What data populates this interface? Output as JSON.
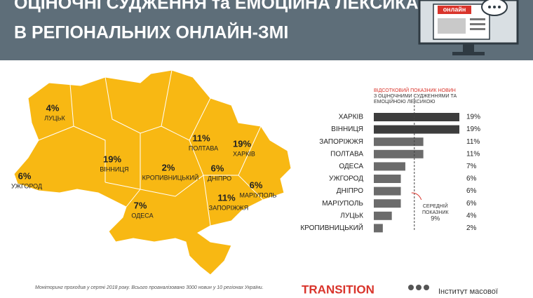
{
  "header": {
    "title_line1": "ОЦІНОЧНІ СУДЖЕННЯ та ЕМОЦІЙНА ЛЕКСИКА",
    "title_line2": "В РЕГІОНАЛЬНИХ ОНЛАЙН-ЗМІ",
    "icon_label": "онлайн"
  },
  "map": {
    "labels": [
      {
        "percent": "4%",
        "city": "ЛУЦЬК"
      },
      {
        "percent": "6%",
        "city": "УЖГОРОД"
      },
      {
        "percent": "19%",
        "city": "ВІННИЦЯ"
      },
      {
        "percent": "2%",
        "city": "КРОПИВНИЦЬКИЙ"
      },
      {
        "percent": "11%",
        "city": "ПОЛТАВА"
      },
      {
        "percent": "19%",
        "city": "ХАРКІВ"
      },
      {
        "percent": "6%",
        "city": "ДНІПРО"
      },
      {
        "percent": "6%",
        "city": "МАРІУПОЛЬ"
      },
      {
        "percent": "11%",
        "city": "ЗАПОРІЖЖЯ"
      },
      {
        "percent": "7%",
        "city": "ОДЕСА"
      }
    ]
  },
  "chart_data": {
    "type": "hbar",
    "title_lines": [
      "ВІДСОТКОВИЙ ПОКАЗНИК НОВИН",
      "З ОЦІНОЧНИМИ СУДЖЕННЯМИ ТА",
      "ЕМОЦІЙНОЮ ЛЕКСИКОЮ"
    ],
    "categories": [
      "ХАРКІВ",
      "ВІННИЦЯ",
      "ЗАПОРІЖЖЯ",
      "ПОЛТАВА",
      "ОДЕСА",
      "УЖГОРОД",
      "ДНІПРО",
      "МАРІУПОЛЬ",
      "ЛУЦЬК",
      "КРОПИВНИЦЬКИЙ"
    ],
    "values": [
      19,
      19,
      11,
      11,
      7,
      6,
      6,
      6,
      4,
      2
    ],
    "value_labels": [
      "19%",
      "19%",
      "11%",
      "11%",
      "7%",
      "6%",
      "6%",
      "6%",
      "4%",
      "2%"
    ],
    "colors": [
      "#3d3d3d",
      "#3d3d3d",
      "#6b6b6b",
      "#6b6b6b",
      "#6b6b6b",
      "#6b6b6b",
      "#6b6b6b",
      "#6b6b6b",
      "#6b6b6b",
      "#6b6b6b"
    ],
    "xlim": [
      0,
      19
    ],
    "average": {
      "value": 9,
      "label_lines": [
        "СЕРЕДНІЙ",
        "ПОКАЗНИК",
        "9%"
      ]
    }
  },
  "footer": {
    "note": "Моніторинг проходив у серпні 2018 року. Всього проаналізовано 3000 новин у 10 регіонах України.",
    "logo1": "TRANSITION",
    "logo2": "Інститут масової"
  }
}
